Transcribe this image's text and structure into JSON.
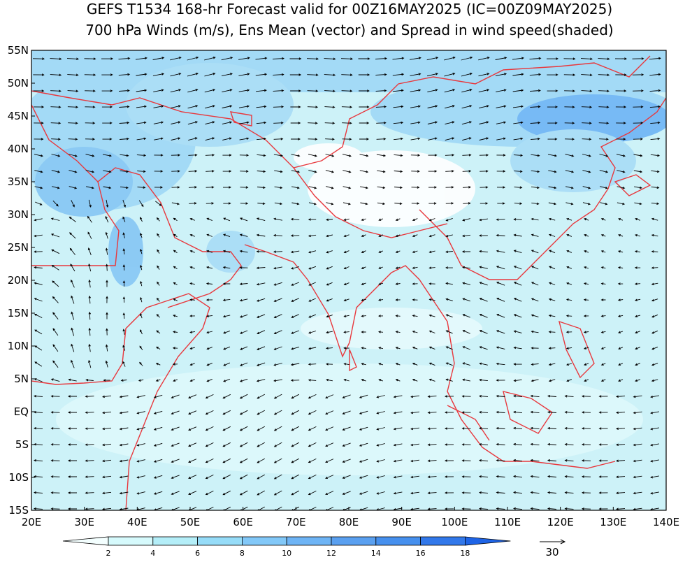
{
  "title": {
    "line1": "GEFS T1534 168-hr Forecast valid for 00Z16MAY2025 (IC=00Z09MAY2025)",
    "line2": "700 hPa Winds (m/s), Ens Mean (vector) and Spread in wind speed(shaded)"
  },
  "map": {
    "lat_labels": [
      "55N",
      "50N",
      "45N",
      "40N",
      "35N",
      "30N",
      "25N",
      "20N",
      "15N",
      "10N",
      "5N",
      "EQ",
      "5S",
      "10S",
      "15S"
    ],
    "lon_labels": [
      "20E",
      "30E",
      "40E",
      "50E",
      "60E",
      "70E",
      "80E",
      "90E",
      "100E",
      "110E",
      "120E",
      "130E",
      "140E"
    ]
  },
  "colorbar": {
    "labels": [
      2,
      4,
      6,
      8,
      10,
      12,
      14,
      16,
      18
    ],
    "colors": [
      "#f4ffff",
      "#d6fafc",
      "#b4eef8",
      "#96dcf8",
      "#82c8f8",
      "#6eb4f5",
      "#5aa0f0",
      "#4690ee",
      "#3278ea",
      "#1e64e6"
    ]
  },
  "reference_vector": {
    "label": "30"
  }
}
